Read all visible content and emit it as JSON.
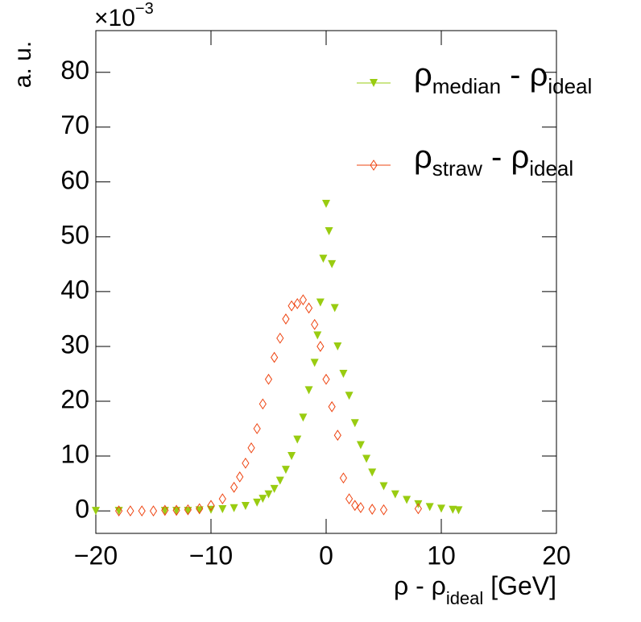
{
  "chart_data": {
    "type": "scatter",
    "ylabel": "a. u.",
    "y_multiplier": [
      "×10",
      "−3"
    ],
    "xlabel": [
      "ρ - ρ",
      "ideal",
      " [GeV]"
    ],
    "xlim": [
      -20,
      20
    ],
    "ylim": [
      -4.1,
      87.6
    ],
    "xticks": [
      {
        "value": -20,
        "label": "−20"
      },
      {
        "value": -10,
        "label": "−10"
      },
      0,
      10,
      20
    ],
    "yticks": [
      0,
      10,
      20,
      30,
      40,
      50,
      60,
      70,
      80
    ],
    "legend": "top right",
    "series": [
      {
        "name": [
          "ρ",
          "median",
          " - ρ",
          "ideal"
        ],
        "color": "#99cc11",
        "marker": "triangle-down",
        "x": [
          -20,
          -18,
          -14,
          -13,
          -12,
          -11,
          -10,
          -9,
          -8,
          -7,
          -6,
          -5.5,
          -5,
          -4.5,
          -4,
          -3.5,
          -3,
          -2.5,
          -2,
          -1.5,
          -1,
          -0.75,
          -0.5,
          -0.25,
          0,
          0.25,
          0.5,
          0.75,
          1,
          1.5,
          2,
          2.5,
          3,
          3.5,
          4,
          5,
          6,
          7,
          8,
          9,
          10,
          11,
          11.5
        ],
        "values": [
          0,
          0,
          0,
          0,
          0,
          0.1,
          0.2,
          0.3,
          0.5,
          0.9,
          1.5,
          2.2,
          3,
          4,
          5.5,
          7.5,
          10,
          13,
          17,
          22,
          27,
          32,
          38,
          46,
          56,
          51,
          45,
          37,
          30,
          25,
          21,
          16,
          12,
          9.5,
          7,
          4.5,
          3,
          2,
          1.2,
          0.7,
          0.4,
          0.2,
          0.1
        ]
      },
      {
        "name": [
          "ρ",
          "straw",
          " - ρ",
          "ideal"
        ],
        "color": "#ee4411",
        "marker": "diamond-open",
        "x": [
          -18,
          -17,
          -16,
          -15,
          -14,
          -13,
          -12,
          -11,
          -10,
          -9,
          -8,
          -7.5,
          -7,
          -6.5,
          -6,
          -5.5,
          -5,
          -4.5,
          -4,
          -3.5,
          -3,
          -2.5,
          -2,
          -1.5,
          -1,
          -0.5,
          0,
          0.5,
          1,
          1.5,
          2,
          2.5,
          3,
          4,
          5,
          8
        ],
        "values": [
          0,
          0,
          0,
          0,
          0.1,
          0.1,
          0.2,
          0.4,
          1,
          2.2,
          4.3,
          6.2,
          8.7,
          11.5,
          15,
          19.5,
          24,
          28,
          31.5,
          35,
          37.4,
          37.8,
          38.5,
          37,
          34,
          30,
          24,
          19,
          13.8,
          6,
          2.2,
          1,
          0.6,
          0.3,
          0.2,
          0.4
        ]
      }
    ]
  }
}
